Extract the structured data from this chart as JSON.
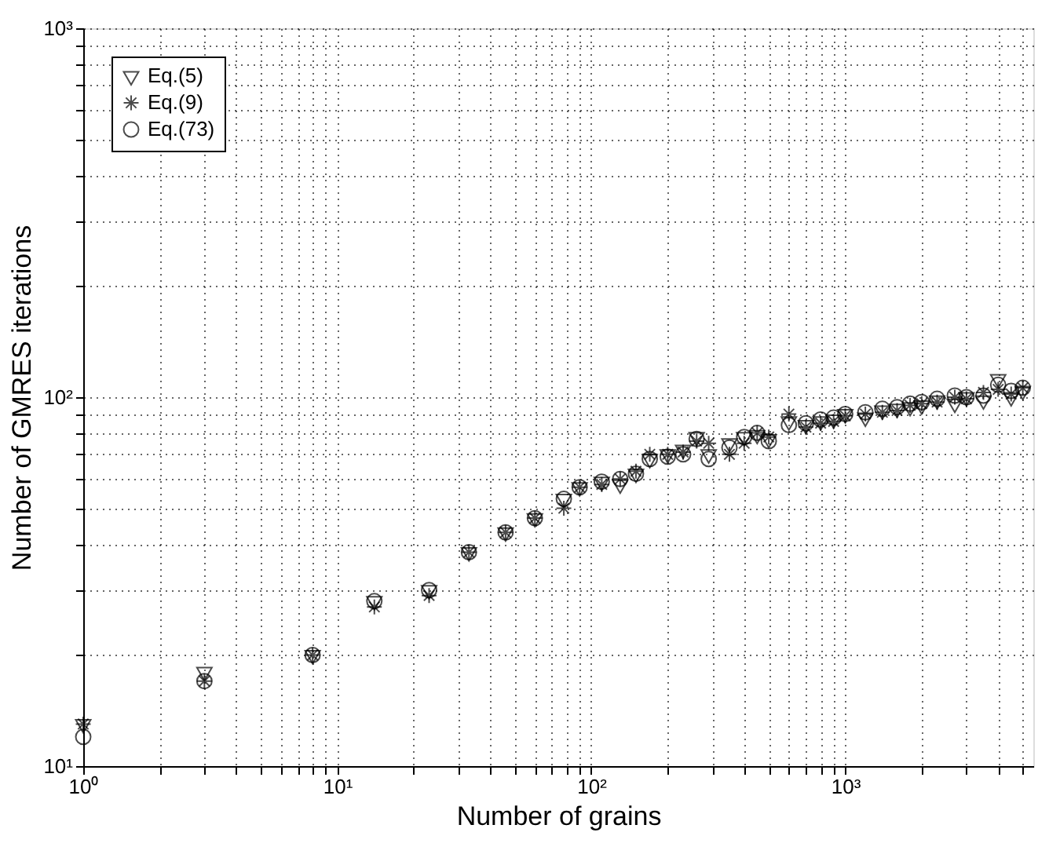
{
  "chart_data": {
    "type": "scatter",
    "xlabel": "Number of grains",
    "ylabel": "Number of GMRES iterations",
    "x": [
      1,
      3,
      8,
      14,
      23,
      33,
      46,
      60,
      78,
      90,
      110,
      130,
      150,
      170,
      200,
      230,
      260,
      290,
      350,
      400,
      450,
      500,
      600,
      700,
      800,
      900,
      1000,
      1200,
      1400,
      1600,
      1800,
      2000,
      2300,
      2700,
      3000,
      3500,
      4000,
      4500,
      5000
    ],
    "series": [
      {
        "name": "Eq.(5)",
        "color": "#000000",
        "marker": "triangle",
        "values": [
          13,
          18,
          20,
          28,
          30,
          38,
          43,
          47,
          53,
          57,
          59,
          58,
          62,
          68,
          70,
          72,
          78,
          70,
          75,
          78,
          79,
          77,
          86,
          84,
          86,
          87,
          90,
          88,
          92,
          93,
          94,
          95,
          98,
          96,
          100,
          98,
          112,
          100,
          104
        ]
      },
      {
        "name": "Eq.(9)",
        "color": "#000000",
        "marker": "cross",
        "values": [
          13,
          17,
          20,
          27,
          29,
          38,
          43,
          47,
          50,
          57,
          58,
          60,
          63,
          70,
          70,
          71,
          76,
          75,
          70,
          75,
          80,
          78,
          90,
          83,
          85,
          86,
          89,
          90,
          91,
          92,
          95,
          96,
          97,
          100,
          99,
          103,
          105,
          102,
          106
        ]
      },
      {
        "name": "Eq.(73)",
        "color": "#000000",
        "marker": "circle",
        "values": [
          12,
          17,
          20,
          28,
          30,
          38,
          43,
          47,
          53,
          57,
          59,
          60,
          62,
          68,
          69,
          70,
          77,
          68,
          73,
          78,
          80,
          76,
          84,
          85,
          87,
          88,
          90,
          91,
          93,
          94,
          96,
          97,
          99,
          101,
          100,
          101,
          108,
          104,
          106
        ]
      }
    ],
    "log": "xy",
    "xlim": [
      1,
      5500
    ],
    "ylim": [
      10,
      1000
    ],
    "xticks": [
      {
        "value": 1,
        "label": "10⁰"
      },
      {
        "value": 2,
        "label": null
      },
      {
        "value": 3,
        "label": null
      },
      {
        "value": 4,
        "label": null
      },
      {
        "value": 5,
        "label": null
      },
      {
        "value": 6,
        "label": null
      },
      {
        "value": 7,
        "label": null
      },
      {
        "value": 8,
        "label": null
      },
      {
        "value": 9,
        "label": null
      },
      {
        "value": 10,
        "label": "10¹"
      },
      {
        "value": 20,
        "label": null
      },
      {
        "value": 30,
        "label": null
      },
      {
        "value": 40,
        "label": null
      },
      {
        "value": 50,
        "label": null
      },
      {
        "value": 60,
        "label": null
      },
      {
        "value": 70,
        "label": null
      },
      {
        "value": 80,
        "label": null
      },
      {
        "value": 90,
        "label": null
      },
      {
        "value": 100,
        "label": "10²"
      },
      {
        "value": 200,
        "label": null
      },
      {
        "value": 300,
        "label": null
      },
      {
        "value": 400,
        "label": null
      },
      {
        "value": 500,
        "label": null
      },
      {
        "value": 600,
        "label": null
      },
      {
        "value": 700,
        "label": null
      },
      {
        "value": 800,
        "label": null
      },
      {
        "value": 900,
        "label": null
      },
      {
        "value": 1000,
        "label": "10³"
      },
      {
        "value": 2000,
        "label": null
      },
      {
        "value": 3000,
        "label": null
      },
      {
        "value": 4000,
        "label": null
      },
      {
        "value": 5000,
        "label": null
      }
    ],
    "yticks": [
      {
        "value": 10,
        "label": "10¹"
      },
      {
        "value": 20,
        "label": null
      },
      {
        "value": 30,
        "label": null
      },
      {
        "value": 40,
        "label": null
      },
      {
        "value": 50,
        "label": null
      },
      {
        "value": 60,
        "label": null
      },
      {
        "value": 70,
        "label": null
      },
      {
        "value": 80,
        "label": null
      },
      {
        "value": 90,
        "label": null
      },
      {
        "value": 100,
        "label": "10²"
      },
      {
        "value": 200,
        "label": null
      },
      {
        "value": 300,
        "label": null
      },
      {
        "value": 400,
        "label": null
      },
      {
        "value": 500,
        "label": null
      },
      {
        "value": 600,
        "label": null
      },
      {
        "value": 700,
        "label": null
      },
      {
        "value": 800,
        "label": null
      },
      {
        "value": 900,
        "label": null
      },
      {
        "value": 1000,
        "label": "10³"
      }
    ],
    "grid": true,
    "legend": "top left"
  }
}
